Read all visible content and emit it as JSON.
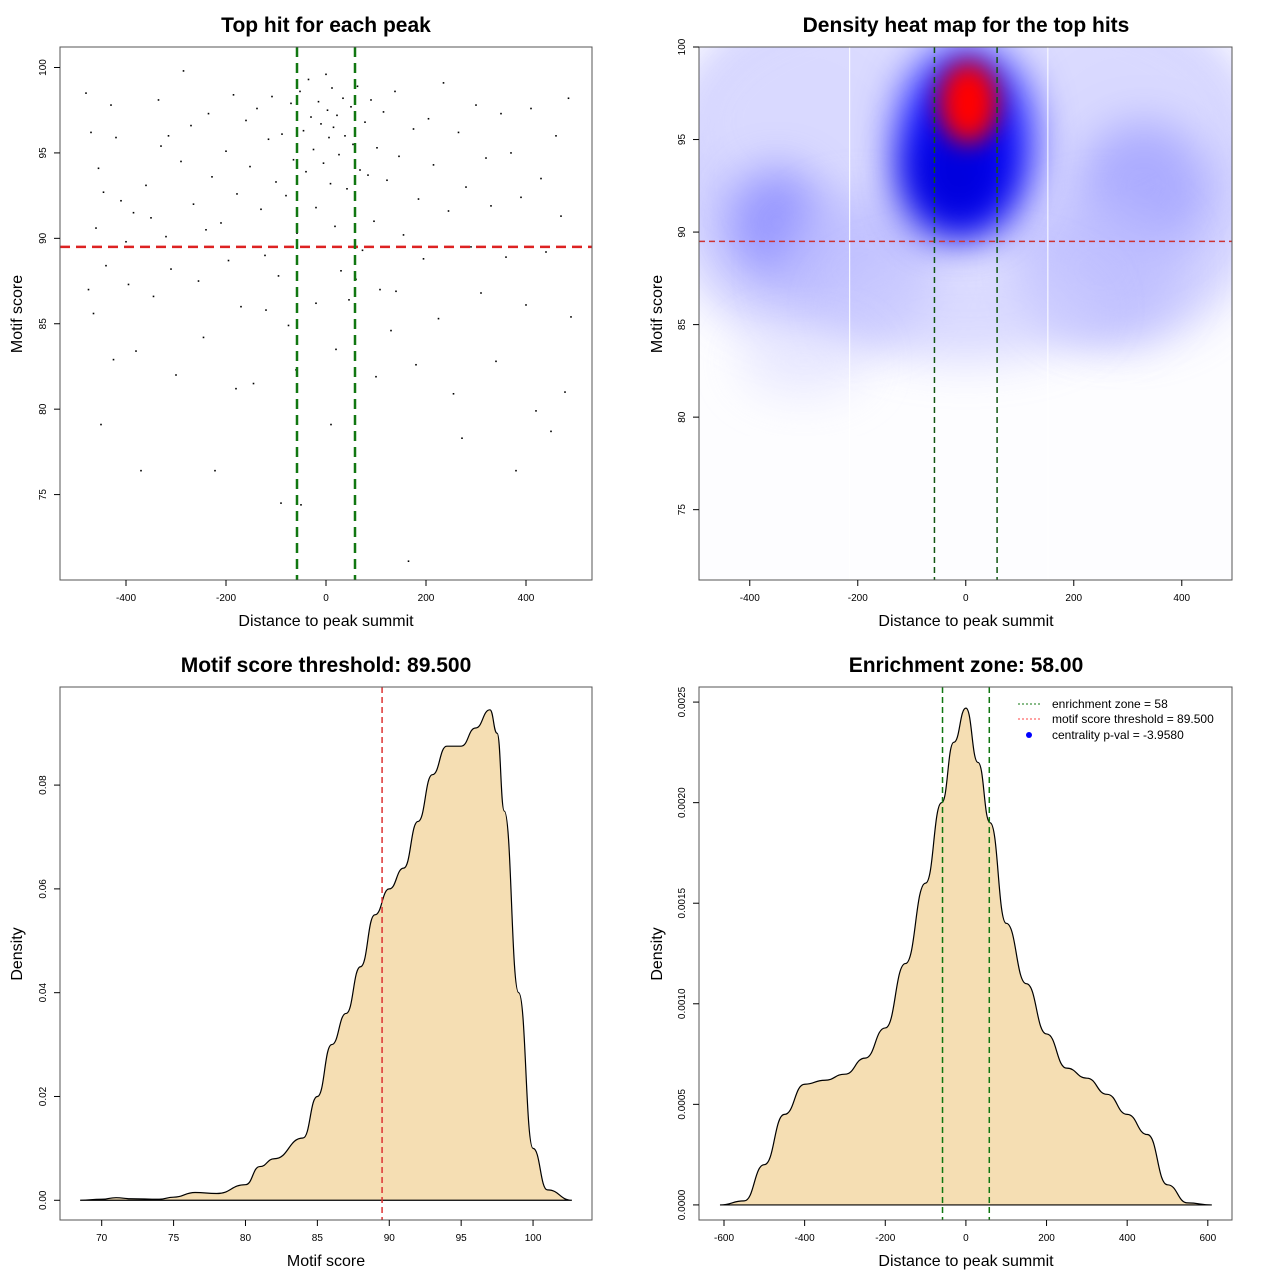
{
  "chart_data": [
    {
      "type": "scatter",
      "title": "Top hit for each peak",
      "xlabel": "Distance to peak summit",
      "ylabel": "Motif score",
      "xlim": [
        -532,
        532
      ],
      "ylim": [
        70,
        101.2
      ],
      "xticks": [
        -400,
        -200,
        0,
        200,
        400
      ],
      "yticks": [
        75,
        80,
        85,
        90,
        95,
        100
      ],
      "threshold_line": {
        "y": 89.5,
        "color": "#dd2222"
      },
      "zone_lines": {
        "x": [
          -58,
          58
        ],
        "color": "#117711"
      },
      "points": [
        [
          -480,
          98.5
        ],
        [
          -470,
          96.2
        ],
        [
          -455,
          94.1
        ],
        [
          -445,
          92.7
        ],
        [
          -460,
          90.6
        ],
        [
          -440,
          88.4
        ],
        [
          -465,
          85.6
        ],
        [
          -450,
          79.1
        ],
        [
          -430,
          97.8
        ],
        [
          -420,
          95.9
        ],
        [
          -410,
          92.2
        ],
        [
          -400,
          89.8
        ],
        [
          -395,
          87.3
        ],
        [
          -380,
          83.4
        ],
        [
          -370,
          76.4
        ],
        [
          -360,
          93.1
        ],
        [
          -350,
          91.2
        ],
        [
          -345,
          86.6
        ],
        [
          -335,
          98.1
        ],
        [
          -330,
          95.4
        ],
        [
          -320,
          90.1
        ],
        [
          -310,
          88.2
        ],
        [
          -300,
          82.0
        ],
        [
          -290,
          94.5
        ],
        [
          -285,
          99.8
        ],
        [
          -270,
          96.6
        ],
        [
          -265,
          92.0
        ],
        [
          -255,
          87.5
        ],
        [
          -245,
          84.2
        ],
        [
          -235,
          97.3
        ],
        [
          -228,
          93.6
        ],
        [
          -222,
          76.4
        ],
        [
          -210,
          90.9
        ],
        [
          -200,
          95.1
        ],
        [
          -195,
          88.7
        ],
        [
          -185,
          98.4
        ],
        [
          -178,
          92.6
        ],
        [
          -170,
          86.0
        ],
        [
          -160,
          96.9
        ],
        [
          -152,
          94.2
        ],
        [
          -145,
          81.5
        ],
        [
          -138,
          97.6
        ],
        [
          -130,
          91.7
        ],
        [
          -122,
          89.0
        ],
        [
          -115,
          95.8
        ],
        [
          -108,
          98.3
        ],
        [
          -100,
          93.3
        ],
        [
          -95,
          87.8
        ],
        [
          -88,
          96.1
        ],
        [
          -80,
          92.5
        ],
        [
          -75,
          84.9
        ],
        [
          -70,
          97.9
        ],
        [
          -65,
          94.6
        ],
        [
          -58,
          90.3
        ],
        [
          -52,
          98.6
        ],
        [
          -45,
          96.3
        ],
        [
          -40,
          93.9
        ],
        [
          -35,
          99.3
        ],
        [
          -30,
          97.1
        ],
        [
          -25,
          95.2
        ],
        [
          -20,
          91.8
        ],
        [
          -15,
          98.0
        ],
        [
          -10,
          96.7
        ],
        [
          -5,
          94.4
        ],
        [
          0,
          99.6
        ],
        [
          3,
          97.5
        ],
        [
          6,
          95.9
        ],
        [
          9,
          93.2
        ],
        [
          12,
          98.8
        ],
        [
          15,
          96.5
        ],
        [
          18,
          90.7
        ],
        [
          22,
          97.2
        ],
        [
          26,
          94.9
        ],
        [
          30,
          88.1
        ],
        [
          34,
          98.2
        ],
        [
          38,
          96.0
        ],
        [
          42,
          92.9
        ],
        [
          46,
          86.4
        ],
        [
          50,
          97.7
        ],
        [
          54,
          95.5
        ],
        [
          58,
          91.4
        ],
        [
          63,
          98.9
        ],
        [
          68,
          94.0
        ],
        [
          73,
          89.3
        ],
        [
          78,
          96.8
        ],
        [
          84,
          93.7
        ],
        [
          90,
          98.1
        ],
        [
          96,
          91.0
        ],
        [
          102,
          95.3
        ],
        [
          108,
          87.0
        ],
        [
          115,
          97.4
        ],
        [
          122,
          93.4
        ],
        [
          130,
          84.6
        ],
        [
          138,
          98.6
        ],
        [
          146,
          94.8
        ],
        [
          155,
          90.2
        ],
        [
          165,
          71.1
        ],
        [
          175,
          96.4
        ],
        [
          185,
          92.3
        ],
        [
          195,
          88.8
        ],
        [
          205,
          97.0
        ],
        [
          215,
          94.3
        ],
        [
          225,
          85.3
        ],
        [
          235,
          99.1
        ],
        [
          245,
          91.6
        ],
        [
          255,
          80.9
        ],
        [
          265,
          96.2
        ],
        [
          272,
          78.3
        ],
        [
          280,
          93.0
        ],
        [
          290,
          89.5
        ],
        [
          300,
          97.8
        ],
        [
          310,
          86.8
        ],
        [
          320,
          94.7
        ],
        [
          330,
          91.9
        ],
        [
          340,
          82.8
        ],
        [
          350,
          97.3
        ],
        [
          360,
          88.9
        ],
        [
          370,
          95.0
        ],
        [
          380,
          76.4
        ],
        [
          390,
          92.4
        ],
        [
          400,
          86.1
        ],
        [
          410,
          97.6
        ],
        [
          420,
          79.9
        ],
        [
          430,
          93.5
        ],
        [
          440,
          89.2
        ],
        [
          450,
          78.7
        ],
        [
          460,
          96.0
        ],
        [
          470,
          91.3
        ],
        [
          478,
          81.0
        ],
        [
          485,
          98.2
        ],
        [
          490,
          85.4
        ],
        [
          -475,
          87.0
        ],
        [
          -425,
          82.9
        ],
        [
          -385,
          91.5
        ],
        [
          -315,
          96.0
        ],
        [
          -240,
          90.5
        ],
        [
          -180,
          81.2
        ],
        [
          -120,
          85.8
        ],
        [
          -60,
          82.3
        ],
        [
          -20,
          86.2
        ],
        [
          20,
          83.5
        ],
        [
          60,
          87.6
        ],
        [
          100,
          81.9
        ],
        [
          140,
          86.9
        ],
        [
          180,
          82.6
        ],
        [
          -90,
          74.5
        ],
        [
          -50,
          74.4
        ],
        [
          10,
          79.1
        ]
      ]
    },
    {
      "type": "heatmap",
      "title": "Density heat map for the top hits",
      "xlabel": "Distance to peak summit",
      "ylabel": "Motif score",
      "xlim": [
        -494,
        493
      ],
      "ylim": [
        71.2,
        100
      ],
      "xticks": [
        -400,
        -200,
        0,
        200,
        400
      ],
      "yticks": [
        75,
        80,
        85,
        90,
        95,
        100
      ],
      "peak": {
        "x": 5,
        "y": 97
      },
      "colors": [
        "#ffffff",
        "#0000ff",
        "#ff0000"
      ],
      "threshold_line": {
        "y": 89.5,
        "color": "#cc3333"
      },
      "zone_lines": {
        "x": [
          -58,
          58
        ],
        "color": "#115511"
      }
    },
    {
      "type": "area",
      "title": "Motif score threshold: 89.500",
      "xlabel": "Motif score",
      "ylabel": "Density",
      "xlim": [
        67.1,
        104.1
      ],
      "ylim": [
        -0.0038,
        0.0989
      ],
      "xticks": [
        70,
        75,
        80,
        85,
        90,
        95,
        100
      ],
      "yticks": [
        0.0,
        0.02,
        0.04,
        0.06,
        0.08
      ],
      "ytick_labels": [
        "0.00",
        "0.02",
        "0.04",
        "0.06",
        "0.08"
      ],
      "fill": "#f5deb3",
      "threshold_line": {
        "x": 89.5,
        "color": "#dd3333"
      },
      "x": [
        68.5,
        70,
        71,
        72,
        74,
        75,
        76.5,
        78,
        80,
        81,
        82,
        84,
        85,
        86,
        87,
        88,
        89,
        90,
        91,
        92,
        93,
        94,
        95,
        96,
        97,
        97.5,
        98,
        99,
        100,
        101,
        102.7
      ],
      "y": [
        0,
        0.0002,
        0.0005,
        0.0003,
        0.0002,
        0.0006,
        0.0015,
        0.0013,
        0.003,
        0.0065,
        0.008,
        0.012,
        0.02,
        0.03,
        0.036,
        0.045,
        0.055,
        0.06,
        0.064,
        0.073,
        0.082,
        0.0875,
        0.0875,
        0.091,
        0.0945,
        0.09,
        0.075,
        0.04,
        0.01,
        0.002,
        0
      ]
    },
    {
      "type": "area",
      "title": "Enrichment zone: 58.00",
      "xlabel": "Distance to peak summit",
      "ylabel": "Density",
      "xlim": [
        -662,
        660
      ],
      "ylim": [
        -7.5e-05,
        0.002575
      ],
      "xticks": [
        -600,
        -400,
        -200,
        0,
        200,
        400,
        600
      ],
      "yticks": [
        0,
        0.0005,
        0.001,
        0.0015,
        0.002,
        0.0025
      ],
      "ytick_labels": [
        "0.0000",
        "0.0005",
        "0.0010",
        "0.0015",
        "0.0020",
        "0.0025"
      ],
      "fill": "#f5deb3",
      "zone_lines": {
        "x": [
          -58,
          58
        ],
        "color": "#117711"
      },
      "legend": {
        "placement": "top-right",
        "entries": [
          {
            "label": "enrichment zone = 58",
            "color": "#117711",
            "style": "dotted-line"
          },
          {
            "label": "motif score threshold = 89.500",
            "color": "#ff4444",
            "style": "dotted-line"
          },
          {
            "label": "centrality p-val = -3.9580",
            "color": "#0000ff",
            "style": "point"
          }
        ]
      },
      "x": [
        -610,
        -550,
        -500,
        -450,
        -400,
        -350,
        -300,
        -250,
        -200,
        -150,
        -100,
        -60,
        -30,
        0,
        30,
        60,
        100,
        150,
        200,
        250,
        300,
        350,
        400,
        450,
        500,
        550,
        610
      ],
      "y": [
        0,
        2e-05,
        0.0002,
        0.00045,
        0.0006,
        0.00062,
        0.00065,
        0.00073,
        0.00088,
        0.0012,
        0.0016,
        0.002,
        0.0023,
        0.00247,
        0.0022,
        0.0019,
        0.0014,
        0.0011,
        0.00085,
        0.00068,
        0.00063,
        0.00055,
        0.00045,
        0.00035,
        0.0001,
        1e-05,
        0
      ]
    }
  ]
}
